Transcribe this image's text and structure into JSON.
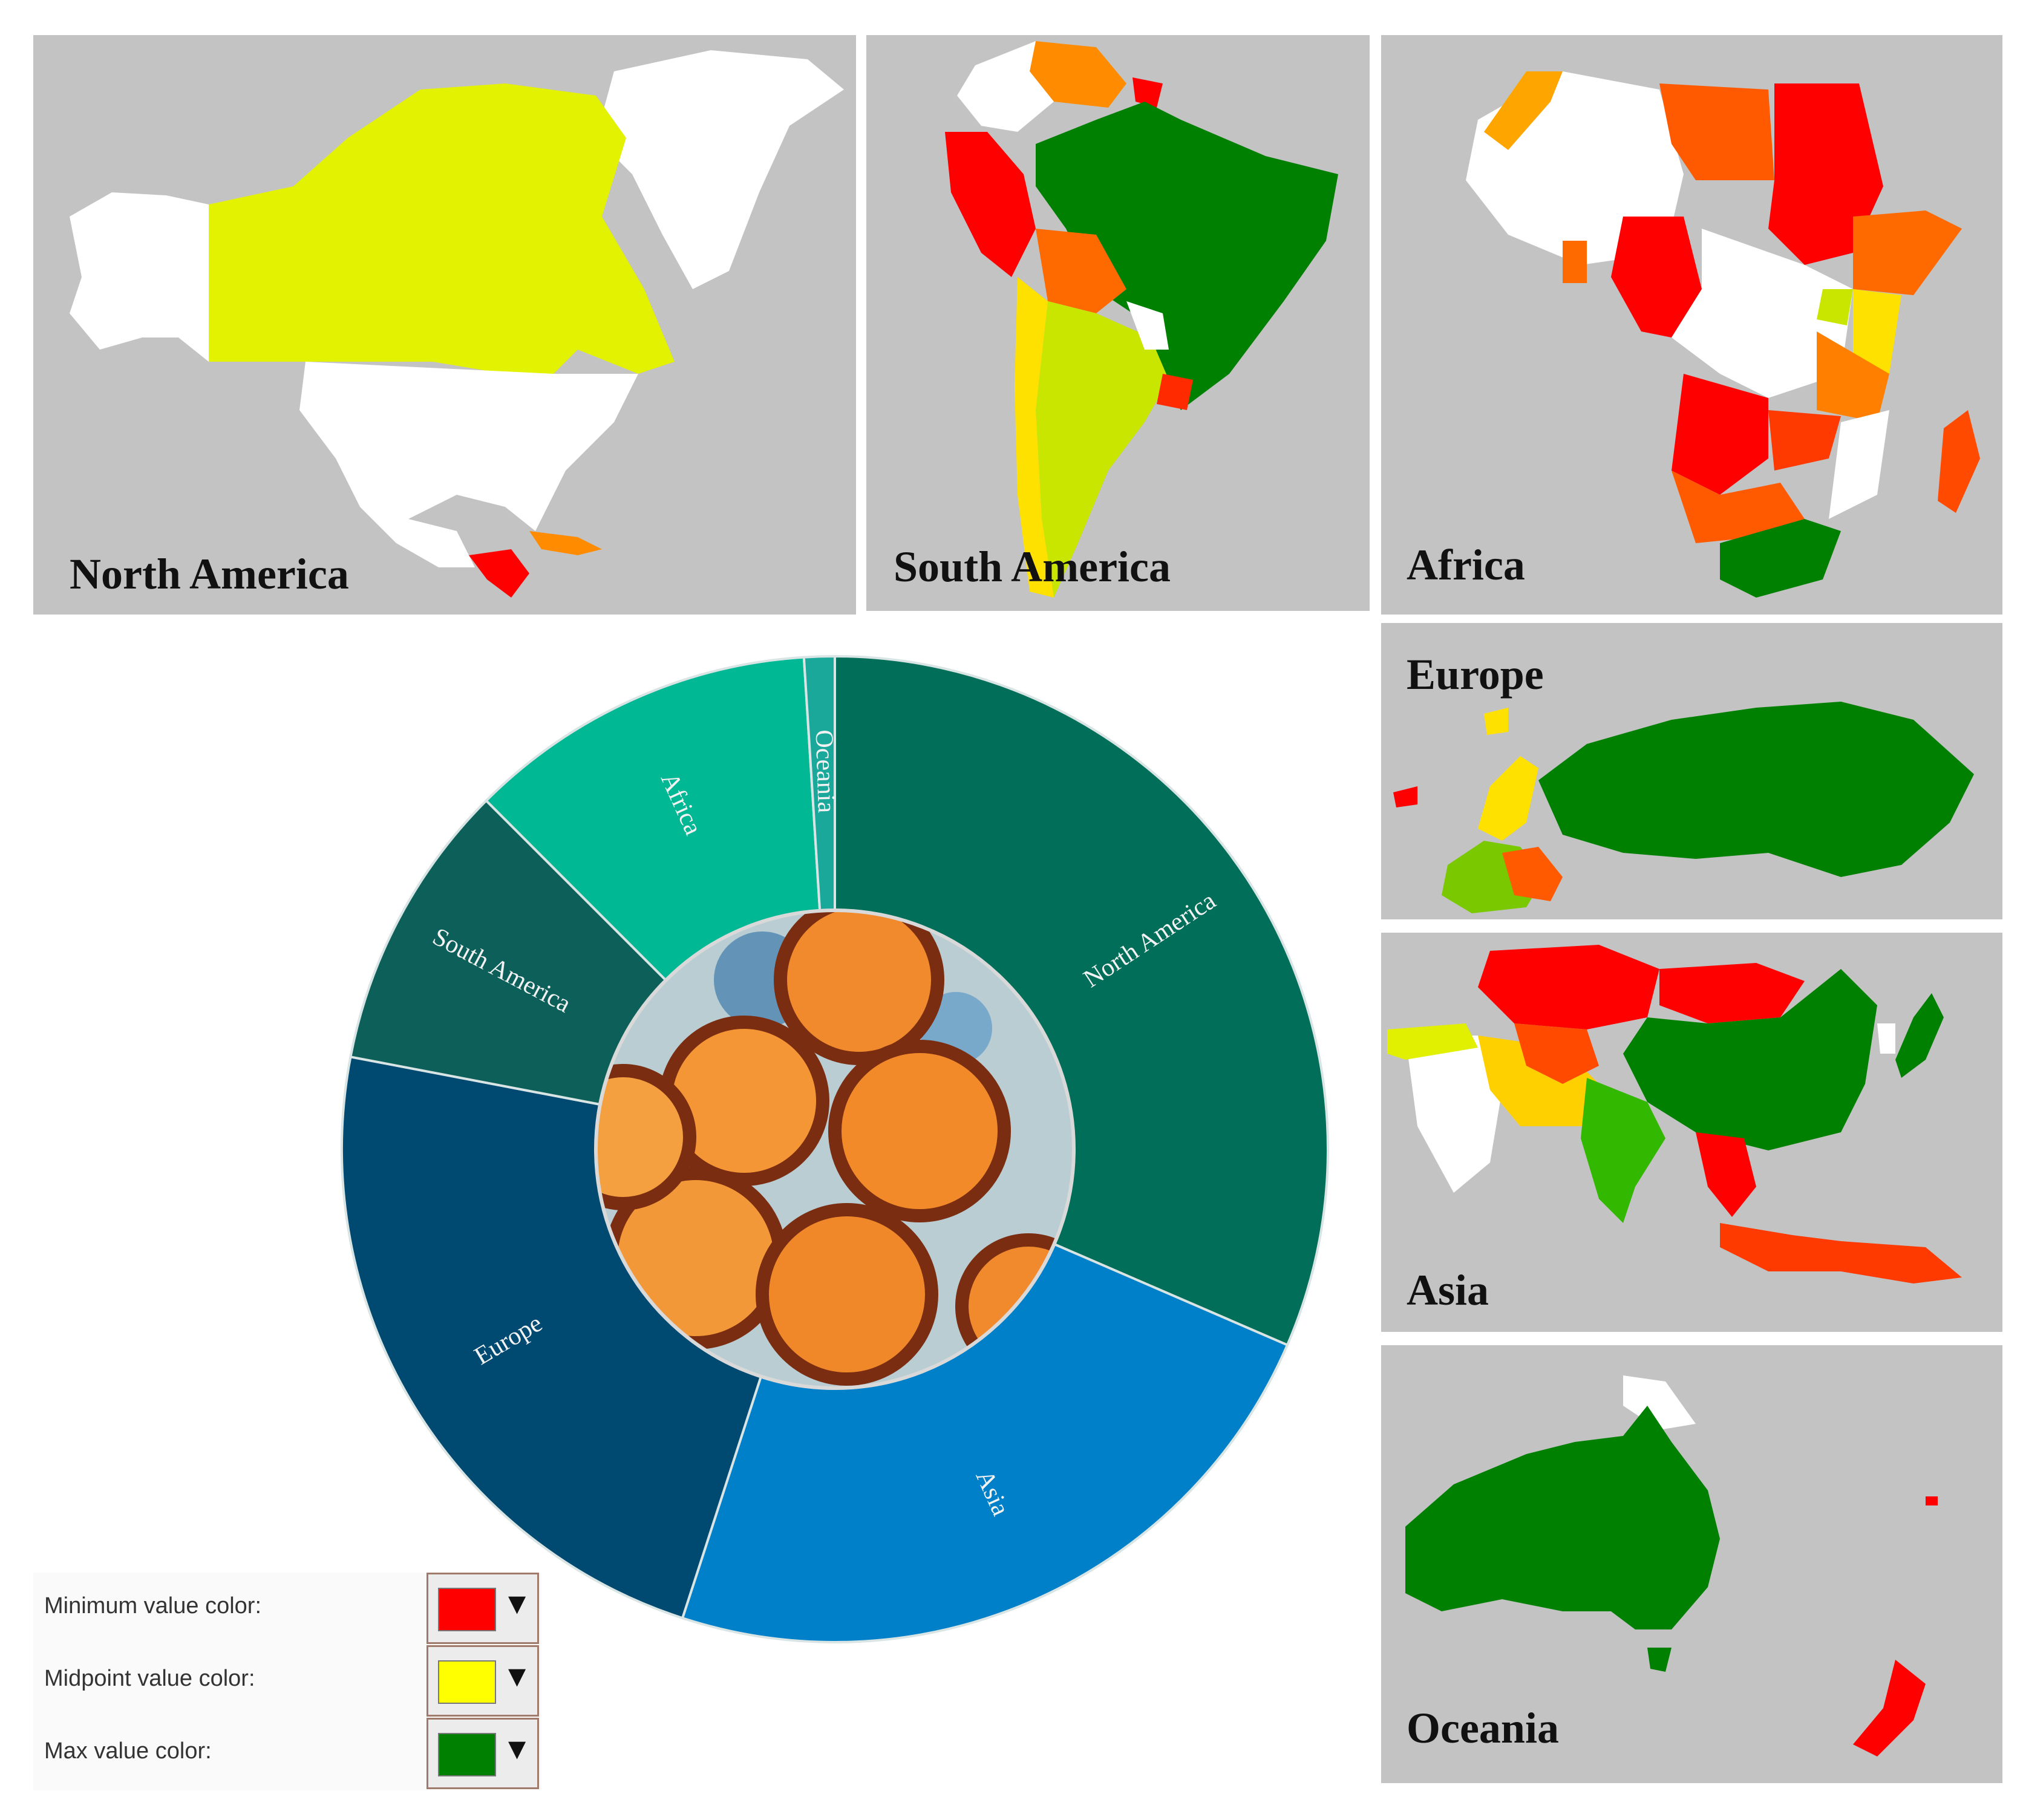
{
  "colors": {
    "min": "#ff0000",
    "mid": "#ffff00",
    "max": "#008000",
    "panel_bg": "#c3c3c3",
    "no_data": "#ffffff"
  },
  "maps": [
    {
      "id": "north-america",
      "label": "North America"
    },
    {
      "id": "south-america",
      "label": "South America"
    },
    {
      "id": "africa",
      "label": "Africa"
    },
    {
      "id": "europe",
      "label": "Europe"
    },
    {
      "id": "asia",
      "label": "Asia"
    },
    {
      "id": "oceania",
      "label": "Oceania"
    }
  ],
  "chart_data": {
    "type": "pie",
    "variant": "donut",
    "center_image": "microscope-cells-photo",
    "slices": [
      {
        "name": "North America",
        "value": 31.5,
        "color": "#006e58"
      },
      {
        "name": "Asia",
        "value": 23.5,
        "color": "#0080c8"
      },
      {
        "name": "Europe",
        "value": 23.0,
        "color": "#004a72"
      },
      {
        "name": "South America",
        "value": 9.5,
        "color": "#0d5f5a"
      },
      {
        "name": "Africa",
        "value": 11.5,
        "color": "#00b894"
      },
      {
        "name": "Oceania",
        "value": 1.0,
        "color": "#1aa89a"
      }
    ]
  },
  "legend": {
    "rows": [
      {
        "label": "Minimum value color:",
        "color": "#ff0000",
        "arrow": "▼"
      },
      {
        "label": "Midpoint value color:",
        "color": "#ffff00",
        "arrow": "▼"
      },
      {
        "label": "Max value color:",
        "color": "#008000",
        "arrow": "▼"
      }
    ]
  }
}
